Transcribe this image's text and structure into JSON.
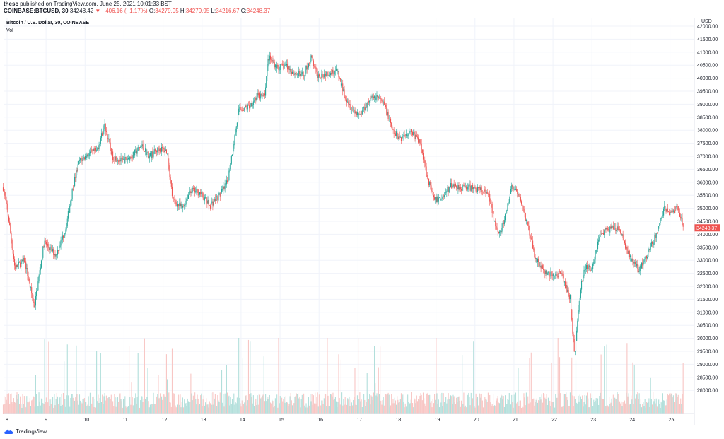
{
  "header": {
    "author": "thesc",
    "publish_text": "published on TradingView.com, June 25, 2021 10:01:33 BST",
    "symbol": "COINBASE:BTCUSD, 30",
    "last": "34248.42",
    "change": "▼ −406.16 (−1.17%)",
    "open_label": "O:",
    "open": "34279.95",
    "high_label": "H:",
    "high": "34279.95",
    "low_label": "L:",
    "low": "34216.67",
    "close_label": "C:",
    "close": "34248.37"
  },
  "chart_title": "Bitcoin / U.S. Dollar, 30, COINBASE",
  "volume_label": "Vol",
  "currency": "USD",
  "last_price_label": "34248.37",
  "footer_logo_text": "TradingView",
  "colors": {
    "up": "#26a69a",
    "down": "#ef5350",
    "up_vol": "#b2dfdb",
    "down_vol": "#f8c6c4",
    "grid": "#f0f3fa",
    "axis_text": "#131722",
    "price_tag": "#ef5350"
  },
  "chart_data": {
    "type": "candlestick",
    "title": "Bitcoin / U.S. Dollar, 30, COINBASE",
    "ylabel": "USD",
    "ylim": [
      27400,
      42400
    ],
    "y_ticks": [
      "42000.00",
      "41500.00",
      "41000.00",
      "40500.00",
      "40000.00",
      "39500.00",
      "39000.00",
      "38500.00",
      "38000.00",
      "37500.00",
      "37000.00",
      "36500.00",
      "36000.00",
      "35500.00",
      "35000.00",
      "34500.00",
      "34000.00",
      "33500.00",
      "33000.00",
      "32500.00",
      "32000.00",
      "31500.00",
      "31000.00",
      "30500.00",
      "30000.00",
      "29500.00",
      "29000.00",
      "28500.00",
      "28000.00"
    ],
    "x_ticks": [
      "8",
      "9",
      "10",
      "11",
      "12",
      "13",
      "14",
      "15",
      "16",
      "17",
      "18",
      "19",
      "20",
      "21",
      "22",
      "23",
      "24",
      "25"
    ],
    "last_price": 34248.37,
    "grid": true,
    "price_path": [
      [
        7.9,
        35800
      ],
      [
        8.05,
        34500
      ],
      [
        8.2,
        32700
      ],
      [
        8.45,
        33000
      ],
      [
        8.7,
        31200
      ],
      [
        8.95,
        33700
      ],
      [
        9.25,
        33200
      ],
      [
        9.5,
        34200
      ],
      [
        9.7,
        35900
      ],
      [
        9.85,
        36800
      ],
      [
        10.1,
        37100
      ],
      [
        10.3,
        37200
      ],
      [
        10.5,
        38200
      ],
      [
        10.7,
        37000
      ],
      [
        10.95,
        36800
      ],
      [
        11.2,
        37000
      ],
      [
        11.45,
        37400
      ],
      [
        11.65,
        37000
      ],
      [
        11.9,
        37300
      ],
      [
        12.1,
        37200
      ],
      [
        12.25,
        35300
      ],
      [
        12.5,
        35000
      ],
      [
        12.7,
        35700
      ],
      [
        12.95,
        35600
      ],
      [
        13.2,
        35100
      ],
      [
        13.5,
        35600
      ],
      [
        13.65,
        36000
      ],
      [
        13.8,
        37400
      ],
      [
        13.95,
        38800
      ],
      [
        14.2,
        38900
      ],
      [
        14.4,
        39300
      ],
      [
        14.6,
        39300
      ],
      [
        14.7,
        40800
      ],
      [
        14.95,
        40400
      ],
      [
        15.15,
        40500
      ],
      [
        15.35,
        40200
      ],
      [
        15.6,
        40100
      ],
      [
        15.8,
        40800
      ],
      [
        15.95,
        40100
      ],
      [
        16.2,
        40200
      ],
      [
        16.45,
        40300
      ],
      [
        16.65,
        39400
      ],
      [
        16.85,
        38800
      ],
      [
        17.05,
        38600
      ],
      [
        17.3,
        39200
      ],
      [
        17.5,
        39300
      ],
      [
        17.7,
        38900
      ],
      [
        17.9,
        37900
      ],
      [
        18.1,
        37700
      ],
      [
        18.35,
        38000
      ],
      [
        18.6,
        37500
      ],
      [
        18.8,
        36100
      ],
      [
        18.95,
        35300
      ],
      [
        19.15,
        35400
      ],
      [
        19.4,
        35900
      ],
      [
        19.65,
        35800
      ],
      [
        19.9,
        35800
      ],
      [
        20.15,
        35700
      ],
      [
        20.35,
        35500
      ],
      [
        20.5,
        34500
      ],
      [
        20.65,
        34000
      ],
      [
        20.8,
        34800
      ],
      [
        20.95,
        35900
      ],
      [
        21.2,
        35200
      ],
      [
        21.4,
        34000
      ],
      [
        21.55,
        33100
      ],
      [
        21.8,
        32500
      ],
      [
        22.0,
        32400
      ],
      [
        22.2,
        32500
      ],
      [
        22.45,
        31500
      ],
      [
        22.55,
        29300
      ],
      [
        22.7,
        31800
      ],
      [
        22.8,
        32700
      ],
      [
        23.0,
        32700
      ],
      [
        23.2,
        34000
      ],
      [
        23.45,
        34200
      ],
      [
        23.7,
        34200
      ],
      [
        23.95,
        33200
      ],
      [
        24.2,
        32600
      ],
      [
        24.45,
        33300
      ],
      [
        24.65,
        34000
      ],
      [
        24.85,
        35000
      ],
      [
        25.05,
        34800
      ],
      [
        25.2,
        35100
      ],
      [
        25.35,
        34200
      ]
    ]
  }
}
